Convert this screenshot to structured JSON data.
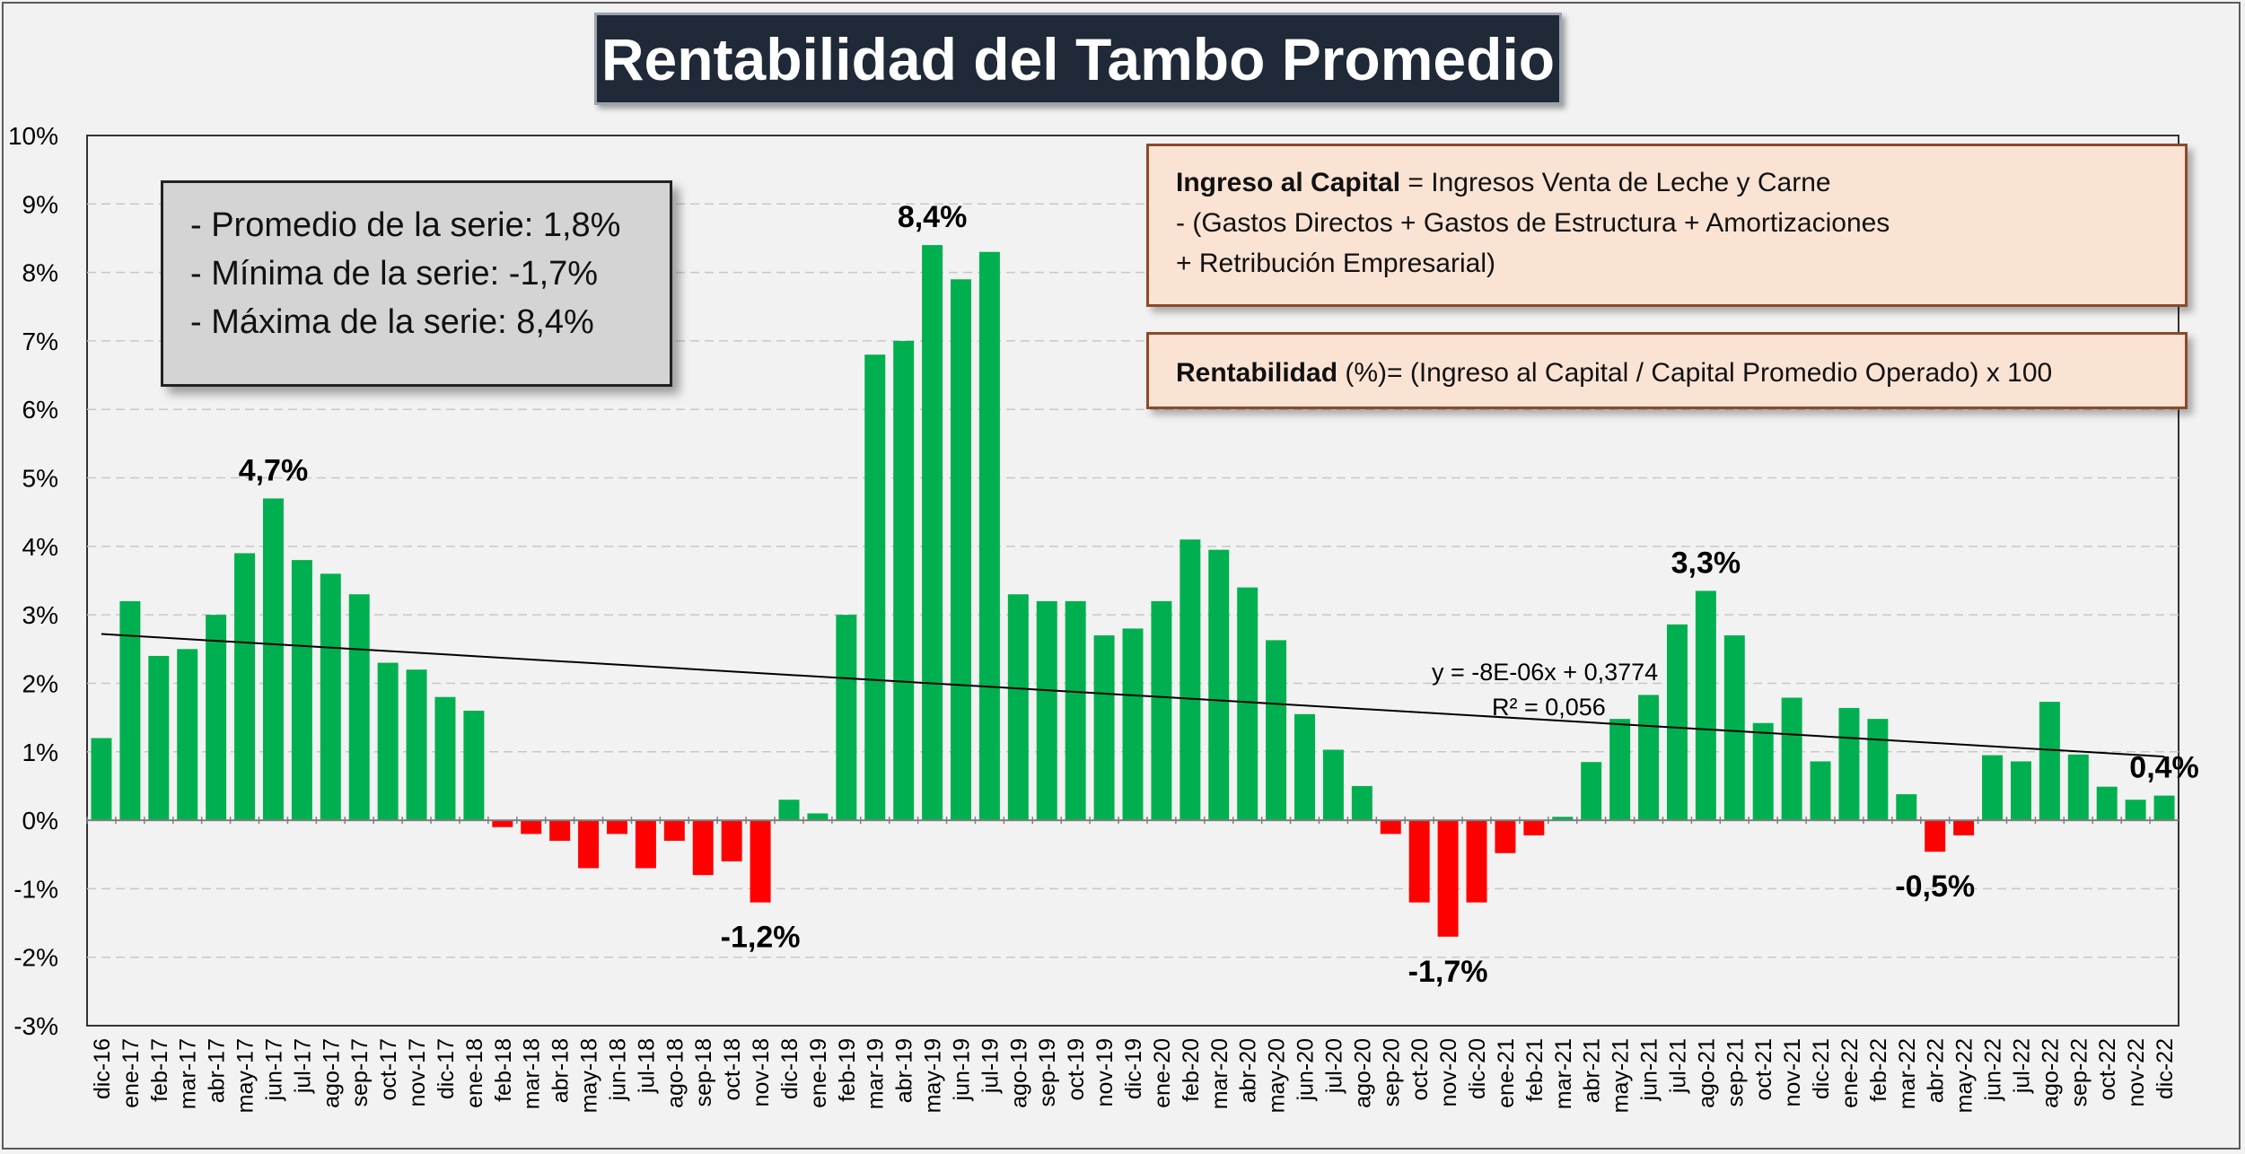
{
  "title": "Rentabilidad del Tambo Promedio",
  "stats": [
    "- Promedio de la serie: 1,8%",
    "- Mínima de la serie: -1,7%",
    "- Máxima de la serie: 8,4%"
  ],
  "formula_capital": {
    "bold": "Ingreso al Capital",
    "rest": " = Ingresos Venta de Leche y Carne",
    "line2": "-  (Gastos Directos + Gastos de Estructura  + Amortizaciones",
    "line3": "+  Retribución Empresarial)"
  },
  "formula_rent": {
    "bold": "Rentabilidad",
    "rest": " (%)= (Ingreso al Capital / Capital Promedio Operado) x 100"
  },
  "colors": {
    "positive": "#00b050",
    "negative": "#ff0000",
    "trend": "#000000",
    "grid": "#c8c8c8"
  },
  "chart_data": {
    "type": "bar",
    "ylim": [
      -3,
      10
    ],
    "yticks": [
      "-3%",
      "-2%",
      "-1%",
      "0%",
      "1%",
      "2%",
      "3%",
      "4%",
      "5%",
      "6%",
      "7%",
      "8%",
      "9%",
      "10%"
    ],
    "categories": [
      "dic-16",
      "ene-17",
      "feb-17",
      "mar-17",
      "abr-17",
      "may-17",
      "jun-17",
      "jul-17",
      "ago-17",
      "sep-17",
      "oct-17",
      "nov-17",
      "dic-17",
      "ene-18",
      "feb-18",
      "mar-18",
      "abr-18",
      "may-18",
      "jun-18",
      "jul-18",
      "ago-18",
      "sep-18",
      "oct-18",
      "nov-18",
      "dic-18",
      "ene-19",
      "feb-19",
      "mar-19",
      "abr-19",
      "may-19",
      "jun-19",
      "jul-19",
      "ago-19",
      "sep-19",
      "oct-19",
      "nov-19",
      "dic-19",
      "ene-20",
      "feb-20",
      "mar-20",
      "abr-20",
      "may-20",
      "jun-20",
      "jul-20",
      "ago-20",
      "sep-20",
      "oct-20",
      "nov-20",
      "dic-20",
      "ene-21",
      "feb-21",
      "mar-21",
      "abr-21",
      "may-21",
      "jun-21",
      "jul-21",
      "ago-21",
      "sep-21",
      "oct-21",
      "nov-21",
      "dic-21",
      "ene-22",
      "feb-22",
      "mar-22",
      "abr-22",
      "may-22",
      "jun-22",
      "jul-22",
      "ago-22",
      "sep-22",
      "oct-22",
      "nov-22",
      "dic-22"
    ],
    "values": [
      1.2,
      3.2,
      2.4,
      2.5,
      3.0,
      3.9,
      4.7,
      3.8,
      3.6,
      3.3,
      2.3,
      2.2,
      1.8,
      1.6,
      -0.1,
      -0.2,
      -0.3,
      -0.7,
      -0.2,
      -0.7,
      -0.3,
      -0.8,
      -0.6,
      -1.2,
      0.3,
      0.1,
      3.0,
      6.8,
      7.0,
      8.4,
      7.9,
      8.3,
      3.3,
      3.2,
      3.2,
      2.7,
      2.8,
      3.2,
      4.1,
      3.95,
      3.4,
      2.63,
      1.55,
      1.03,
      0.5,
      -0.2,
      -1.2,
      -1.7,
      -1.2,
      -0.48,
      -0.22,
      0.05,
      0.85,
      1.48,
      1.83,
      2.86,
      3.35,
      2.7,
      1.42,
      1.79,
      0.86,
      1.64,
      1.48,
      0.38,
      -0.46,
      -0.22,
      0.95,
      0.86,
      1.73,
      0.96,
      0.49,
      0.3,
      0.36
    ],
    "annotations": [
      {
        "index": 6,
        "label": "4,7%"
      },
      {
        "index": 29,
        "label": "8,4%"
      },
      {
        "index": 23,
        "label": "-1,2%"
      },
      {
        "index": 47,
        "label": "-1,7%"
      },
      {
        "index": 56,
        "label": "3,3%"
      },
      {
        "index": 64,
        "label": "-0,5%"
      },
      {
        "index": 72,
        "label": "0,4%"
      }
    ],
    "trendline": {
      "start_value": 2.72,
      "end_value": 0.93,
      "equation": "y = -8E-06x + 0,3774",
      "r2": "R² = 0,056"
    },
    "grid": true
  }
}
